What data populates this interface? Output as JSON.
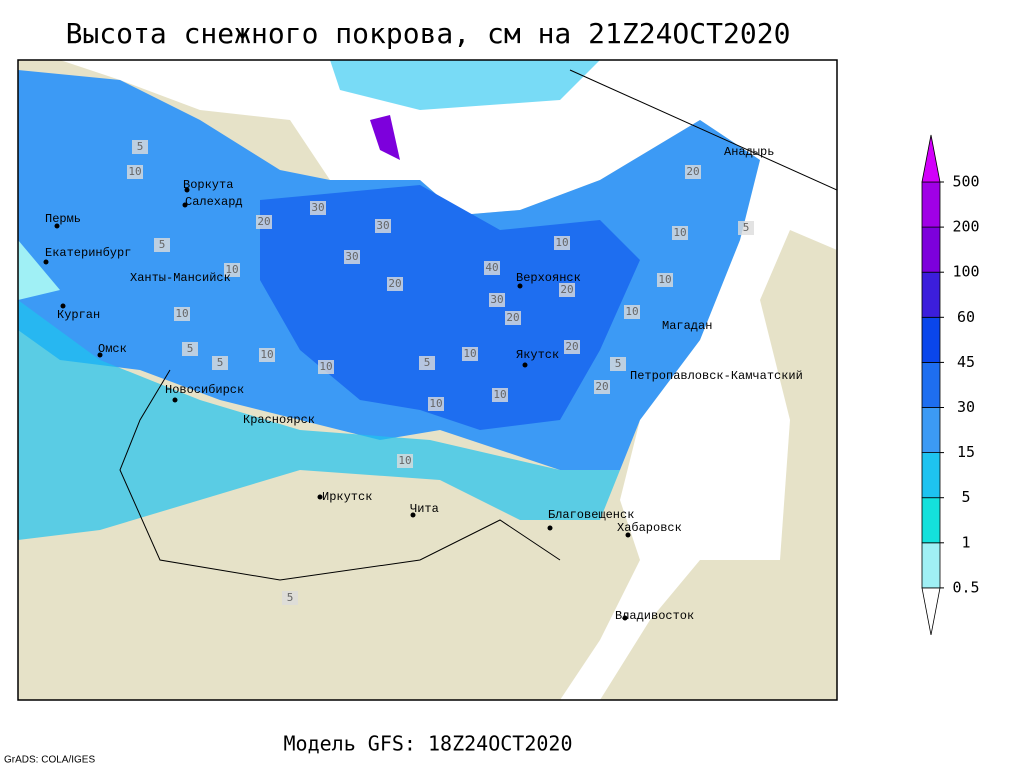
{
  "title": "Высота снежного покрова, см на 21Z24OCT2020",
  "subtitle": "Модель GFS: 18Z24OCT2020",
  "credit": "GrADS: COLA/IGES",
  "legend": {
    "levels": [
      0.5,
      1,
      5,
      15,
      30,
      45,
      60,
      100,
      200,
      500
    ],
    "colors": [
      "#ffffff",
      "#a0f0f5",
      "#14e1dc",
      "#1ec3f0",
      "#3c9af5",
      "#1e6ef0",
      "#0a46eb",
      "#3c1edc",
      "#7d00dc",
      "#a000e6",
      "#d200fa"
    ]
  },
  "cities": [
    "Воркута",
    "Салехард",
    "Пермь",
    "Екатеринбург",
    "Ханты-Мансийск",
    "Курган",
    "Омск",
    "Новосибирск",
    "Красноярск",
    "Иркутск",
    "Чита",
    "Благовещенск",
    "Хабаровск",
    "Владивосток",
    "Верхоянск",
    "Якутск",
    "Магадан",
    "Петропавловск-Камчатский",
    "Анадырь"
  ],
  "contour_labels": [
    10,
    5,
    5,
    10,
    10,
    20,
    30,
    30,
    30,
    20,
    10,
    40,
    30,
    20,
    10,
    5,
    10,
    20,
    10,
    5,
    10,
    20,
    10,
    5,
    20,
    20,
    10,
    10,
    5,
    5,
    10,
    10,
    5
  ]
}
